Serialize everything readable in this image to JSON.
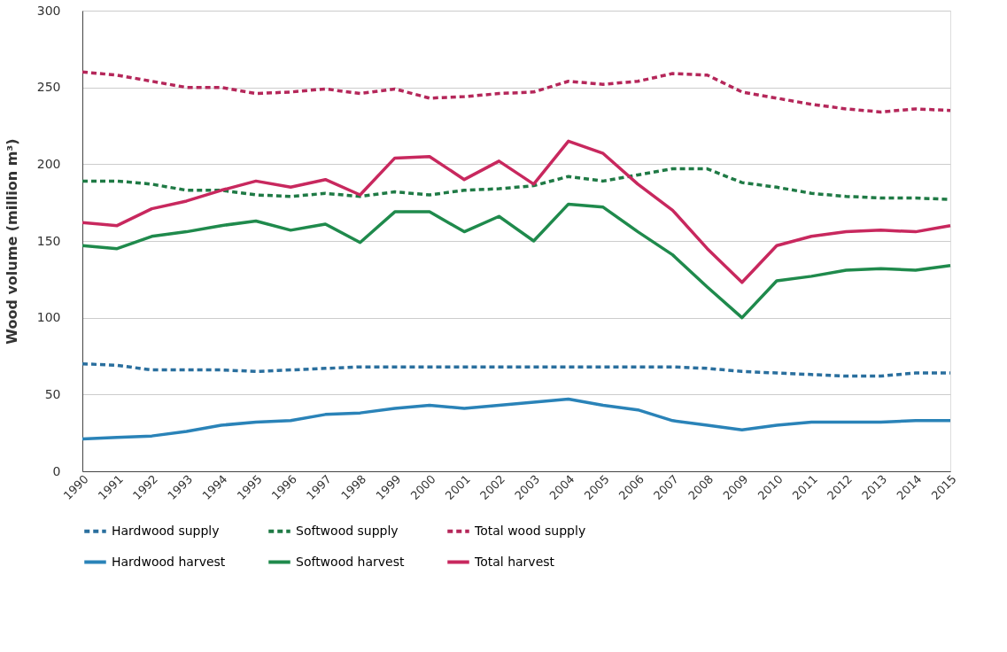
{
  "chart_data": {
    "type": "line",
    "ylabel": "Wood volume (million m³)",
    "categories": [
      "1990",
      "1991",
      "1992",
      "1993",
      "1994",
      "1995",
      "1996",
      "1997",
      "1998",
      "1999",
      "2000",
      "2001",
      "2002",
      "2003",
      "2004",
      "2005",
      "2006",
      "2007",
      "2008",
      "2009",
      "2010",
      "2011",
      "2012",
      "2013",
      "2014",
      "2015"
    ],
    "ylim": [
      0,
      300
    ],
    "yticks": [
      0,
      50,
      100,
      150,
      200,
      250,
      300
    ],
    "grid": "y",
    "legend": "bottom",
    "marker": "none",
    "series": [
      {
        "name": "Hardwood supply",
        "color": "#2a6f9e",
        "line_style": "dashed",
        "values": [
          70,
          69,
          66,
          66,
          66,
          65,
          66,
          67,
          68,
          68,
          68,
          68,
          68,
          68,
          68,
          68,
          68,
          68,
          67,
          65,
          64,
          63,
          62,
          62,
          64,
          64
        ]
      },
      {
        "name": "Softwood supply",
        "color": "#1f7a45",
        "line_style": "dashed",
        "values": [
          189,
          189,
          187,
          183,
          183,
          180,
          179,
          181,
          179,
          182,
          180,
          183,
          184,
          186,
          192,
          189,
          193,
          197,
          197,
          188,
          185,
          181,
          179,
          178,
          178,
          177
        ]
      },
      {
        "name": "Total wood supply",
        "color": "#b5275a",
        "line_style": "dashed",
        "values": [
          260,
          258,
          254,
          250,
          250,
          246,
          247,
          249,
          246,
          249,
          243,
          244,
          246,
          247,
          254,
          252,
          254,
          259,
          258,
          247,
          243,
          239,
          236,
          234,
          236,
          235
        ]
      },
      {
        "name": "Hardwood harvest",
        "color": "#2a83b8",
        "line_style": "solid",
        "values": [
          21,
          22,
          23,
          26,
          30,
          32,
          33,
          37,
          38,
          41,
          43,
          41,
          43,
          45,
          47,
          43,
          40,
          33,
          30,
          27,
          30,
          32,
          32,
          32,
          33,
          33
        ]
      },
      {
        "name": "Softwood harvest",
        "color": "#1f8a4c",
        "line_style": "solid",
        "values": [
          147,
          145,
          153,
          156,
          160,
          163,
          157,
          161,
          149,
          169,
          169,
          156,
          166,
          150,
          174,
          172,
          156,
          141,
          120,
          100,
          124,
          127,
          131,
          132,
          131,
          134
        ]
      },
      {
        "name": "Total harvest",
        "color": "#c8285e",
        "line_style": "solid",
        "values": [
          162,
          160,
          171,
          176,
          183,
          189,
          185,
          190,
          180,
          204,
          205,
          190,
          202,
          187,
          215,
          207,
          187,
          170,
          145,
          123,
          147,
          153,
          156,
          157,
          156,
          160
        ]
      }
    ]
  }
}
